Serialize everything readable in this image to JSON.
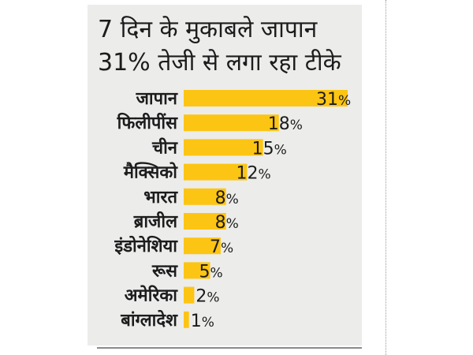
{
  "chart_data": {
    "type": "bar",
    "orientation": "horizontal",
    "title": "7 दिन के मुकाबले जापान 31% तेजी से लगा रहा टीके",
    "title_lines": [
      "7 दिन के मुकाबले जापान",
      "31% तेजी से लगा रहा टीके"
    ],
    "categories": [
      "जापान",
      "फिलीपींस",
      "चीन",
      "मैक्सिको",
      "भारत",
      "ब्राजील",
      "इंडोनेशिया",
      "रूस",
      "अमेरिका",
      "बांग्लादेश"
    ],
    "values": [
      31,
      18,
      15,
      12,
      8,
      8,
      7,
      5,
      2,
      1
    ],
    "value_labels": [
      "31",
      "18",
      "15",
      "12",
      "8",
      "8",
      "7",
      "5",
      "2",
      "1"
    ],
    "unit_suffix": "%",
    "xlim": [
      0,
      31
    ],
    "grid": false,
    "legend": "none",
    "colors": {
      "bar": "#fdc513",
      "background": "#ececeb",
      "text": "#1c1c1c",
      "rule": "#8a8a8a"
    }
  }
}
